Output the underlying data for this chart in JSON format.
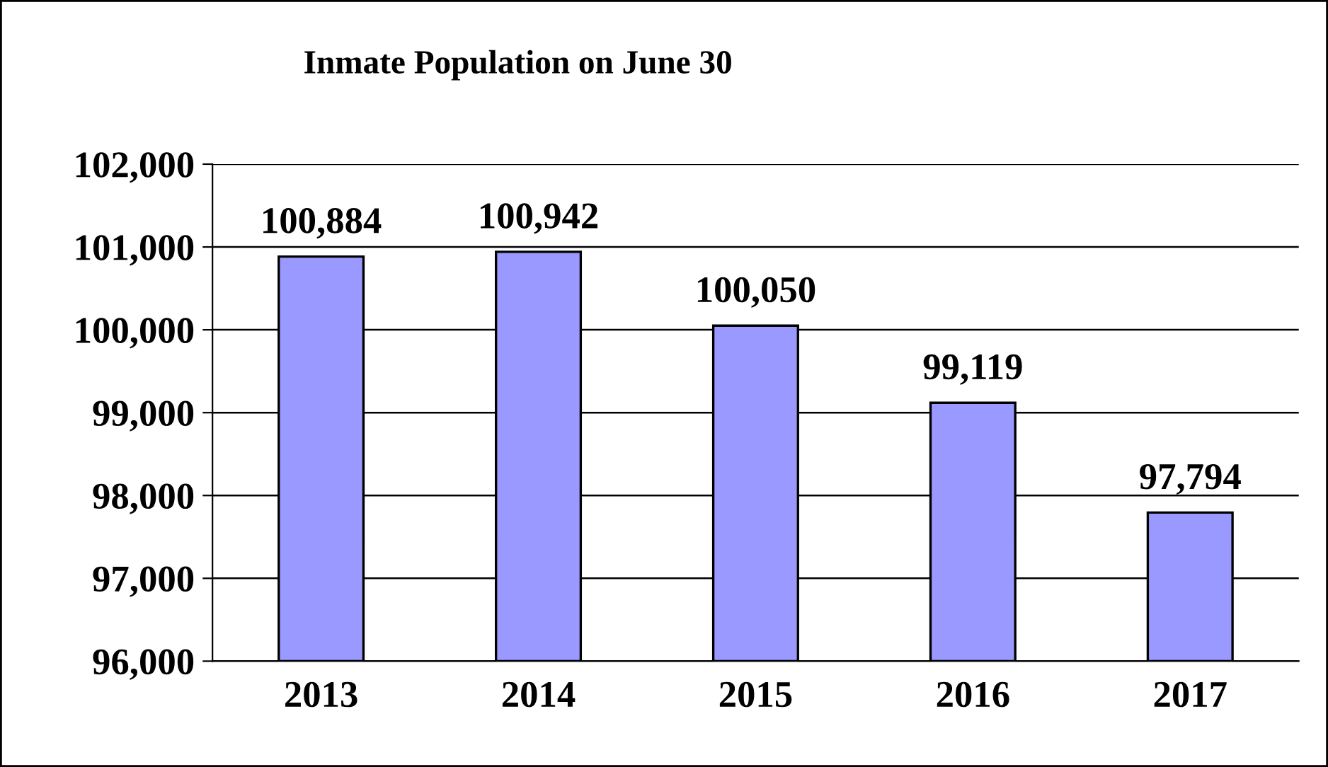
{
  "chart_data": {
    "type": "bar",
    "title": "Inmate Population on June 30",
    "categories": [
      "2013",
      "2014",
      "2015",
      "2016",
      "2017"
    ],
    "values": [
      100884,
      100942,
      100050,
      99119,
      97794
    ],
    "value_labels": [
      "100,884",
      "100,942",
      "100,050",
      "99,119",
      "97,794"
    ],
    "color": "#9999ff",
    "ylim": [
      96000,
      102000
    ],
    "yticks": [
      {
        "value": 96000,
        "label": "96,000"
      },
      {
        "value": 97000,
        "label": "97,000"
      },
      {
        "value": 98000,
        "label": "98,000"
      },
      {
        "value": 99000,
        "label": "99,000"
      },
      {
        "value": 100000,
        "label": "100,000"
      },
      {
        "value": 101000,
        "label": "101,000"
      },
      {
        "value": 102000,
        "label": "102,000"
      }
    ],
    "grid": "y",
    "legend": false
  }
}
